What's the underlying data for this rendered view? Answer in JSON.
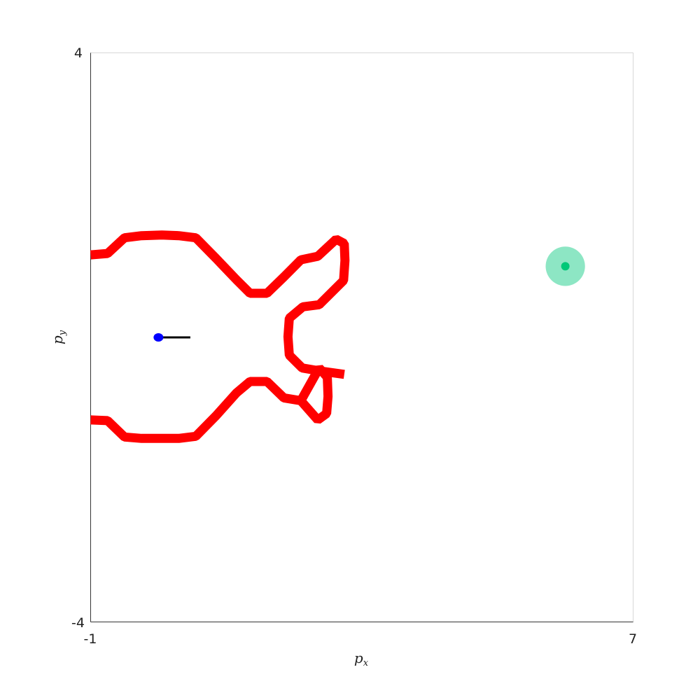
{
  "chart_data": {
    "type": "line",
    "xlabel": "p",
    "xlabel_sub": "x",
    "ylabel": "p",
    "ylabel_sub": "y",
    "xlim": [
      -1,
      7
    ],
    "ylim": [
      -4,
      4
    ],
    "x_tick_labels": [
      "-1",
      "7"
    ],
    "y_tick_labels": [
      "4",
      "-4"
    ],
    "grid": false,
    "series": [
      {
        "role": "obstacle-upper",
        "color": "#ff0000",
        "x": [
          -1.0,
          -0.75,
          -0.5,
          -0.25,
          0.05,
          0.3,
          0.55,
          0.85,
          1.15,
          1.35,
          1.6,
          1.85,
          2.1,
          2.35,
          2.62,
          2.74,
          2.75,
          2.73,
          2.37,
          2.13,
          1.93,
          1.91,
          1.93,
          2.12,
          2.37,
          2.74
        ],
        "y": [
          1.16,
          1.18,
          1.4,
          1.43,
          1.44,
          1.43,
          1.4,
          1.11,
          0.81,
          0.62,
          0.62,
          0.85,
          1.09,
          1.14,
          1.38,
          1.32,
          1.08,
          0.8,
          0.46,
          0.43,
          0.27,
          0.01,
          -0.25,
          -0.43,
          -0.47,
          -0.52
        ]
      },
      {
        "role": "obstacle-lower",
        "color": "#ff0000",
        "x": [
          -1.0,
          -0.75,
          -0.5,
          -0.25,
          0.05,
          0.3,
          0.55,
          0.85,
          1.15,
          1.35,
          1.6,
          1.85,
          2.1,
          2.35,
          2.48,
          2.5,
          2.49,
          2.37,
          2.1
        ],
        "y": [
          -1.16,
          -1.17,
          -1.4,
          -1.42,
          -1.42,
          -1.42,
          -1.39,
          -1.1,
          -0.78,
          -0.62,
          -0.62,
          -0.85,
          -0.89,
          -1.16,
          -1.07,
          -0.83,
          -0.56,
          -0.43,
          -0.89
        ]
      }
    ],
    "agent": {
      "x": 0.0,
      "y": 0.0,
      "color": "#0000ff",
      "heading_end_x": 0.47,
      "heading_end_y": 0.0,
      "heading_color": "#000000"
    },
    "goal": {
      "x": 6.0,
      "y": 1.0,
      "radius": 0.29,
      "color": "#00c878",
      "halo_color": "#8de6c4"
    }
  }
}
